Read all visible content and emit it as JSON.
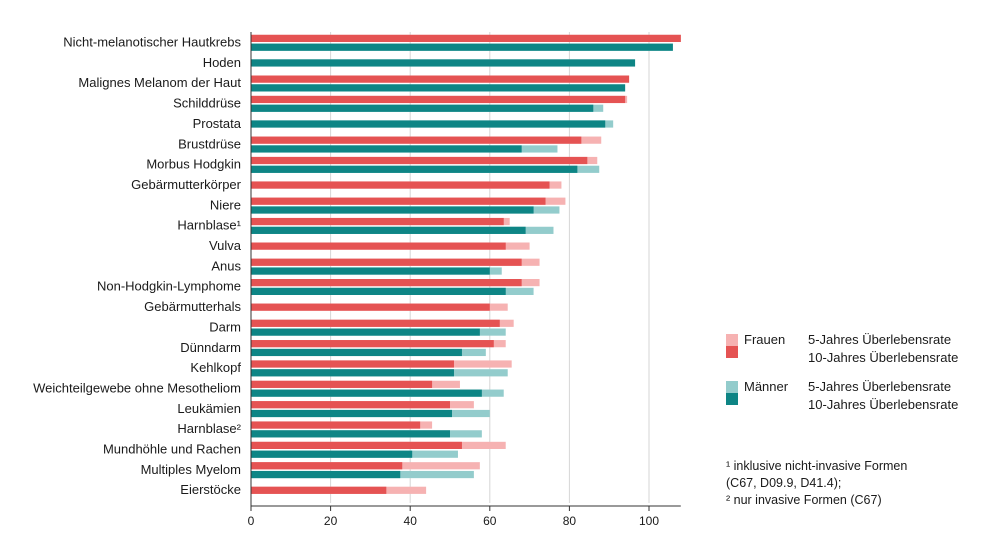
{
  "chart_data": {
    "type": "bar",
    "orientation": "horizontal",
    "xlim": [
      0,
      110
    ],
    "xticks": [
      0,
      20,
      40,
      60,
      80,
      100
    ],
    "grid": true,
    "colors": {
      "frauen_5": "#f6b2b2",
      "frauen_10": "#e55353",
      "maenner_5": "#93cccc",
      "maenner_10": "#0e8585"
    },
    "categories": [
      {
        "label": "Nicht-melanotischer Hautkrebs",
        "f5": 108,
        "f10": 108,
        "m5": 106,
        "m10": 106
      },
      {
        "label": "Hoden",
        "f5": null,
        "f10": null,
        "m5": 96.5,
        "m10": 96.5
      },
      {
        "label": "Malignes Melanom der Haut",
        "f5": 95,
        "f10": 95,
        "m5": 94,
        "m10": 94
      },
      {
        "label": "Schilddrüse",
        "f5": 94.5,
        "f10": 94,
        "m5": 88.5,
        "m10": 86
      },
      {
        "label": "Prostata",
        "f5": null,
        "f10": null,
        "m5": 91,
        "m10": 89
      },
      {
        "label": "Brustdrüse",
        "f5": 88,
        "f10": 83,
        "m5": 77,
        "m10": 68
      },
      {
        "label": "Morbus Hodgkin",
        "f5": 87,
        "f10": 84.5,
        "m5": 87.5,
        "m10": 82
      },
      {
        "label": "Gebärmutterkörper",
        "f5": 78,
        "f10": 75,
        "m5": null,
        "m10": null
      },
      {
        "label": "Niere",
        "f5": 79,
        "f10": 74,
        "m5": 77.5,
        "m10": 71
      },
      {
        "label": "Harnblase¹",
        "f5": 65,
        "f10": 63.5,
        "m5": 76,
        "m10": 69
      },
      {
        "label": "Vulva",
        "f5": 70,
        "f10": 64,
        "m5": null,
        "m10": null
      },
      {
        "label": "Anus",
        "f5": 72.5,
        "f10": 68,
        "m5": 63,
        "m10": 60
      },
      {
        "label": "Non-Hodgkin-Lymphome",
        "f5": 72.5,
        "f10": 68,
        "m5": 71,
        "m10": 64
      },
      {
        "label": "Gebärmutterhals",
        "f5": 64.5,
        "f10": 60,
        "m5": null,
        "m10": null
      },
      {
        "label": "Darm",
        "f5": 66,
        "f10": 62.5,
        "m5": 64,
        "m10": 57.5
      },
      {
        "label": "Dünndarm",
        "f5": 64,
        "f10": 61,
        "m5": 59,
        "m10": 53
      },
      {
        "label": "Kehlkopf",
        "f5": 65.5,
        "f10": 51,
        "m5": 64.5,
        "m10": 51
      },
      {
        "label": "Weichteilgewebe ohne Mesotheliom",
        "f5": 52.5,
        "f10": 45.5,
        "m5": 63.5,
        "m10": 58
      },
      {
        "label": "Leukämien",
        "f5": 56,
        "f10": 50,
        "m5": 60,
        "m10": 50.5
      },
      {
        "label": "Harnblase²",
        "f5": 45.5,
        "f10": 42.5,
        "m5": 58,
        "m10": 50
      },
      {
        "label": "Mundhöhle und Rachen",
        "f5": 64,
        "f10": 53,
        "m5": 52,
        "m10": 40.5
      },
      {
        "label": "Multiples Myelom",
        "f5": 57.5,
        "f10": 38,
        "m5": 56,
        "m10": 37.5
      },
      {
        "label": "Eierstöcke",
        "f5": 44,
        "f10": 34,
        "m5": null,
        "m10": null
      }
    ]
  },
  "legend": {
    "frauen": "Frauen",
    "maenner": "Männer",
    "five_year": "5-Jahres Überlebensrate",
    "ten_year": "10-Jahres Überlebensrate"
  },
  "footnotes": {
    "line1": "¹ inklusive nicht-invasive Formen",
    "line2": "(C67, D09.9, D41.4);",
    "line3": "² nur invasive Formen (C67)"
  }
}
